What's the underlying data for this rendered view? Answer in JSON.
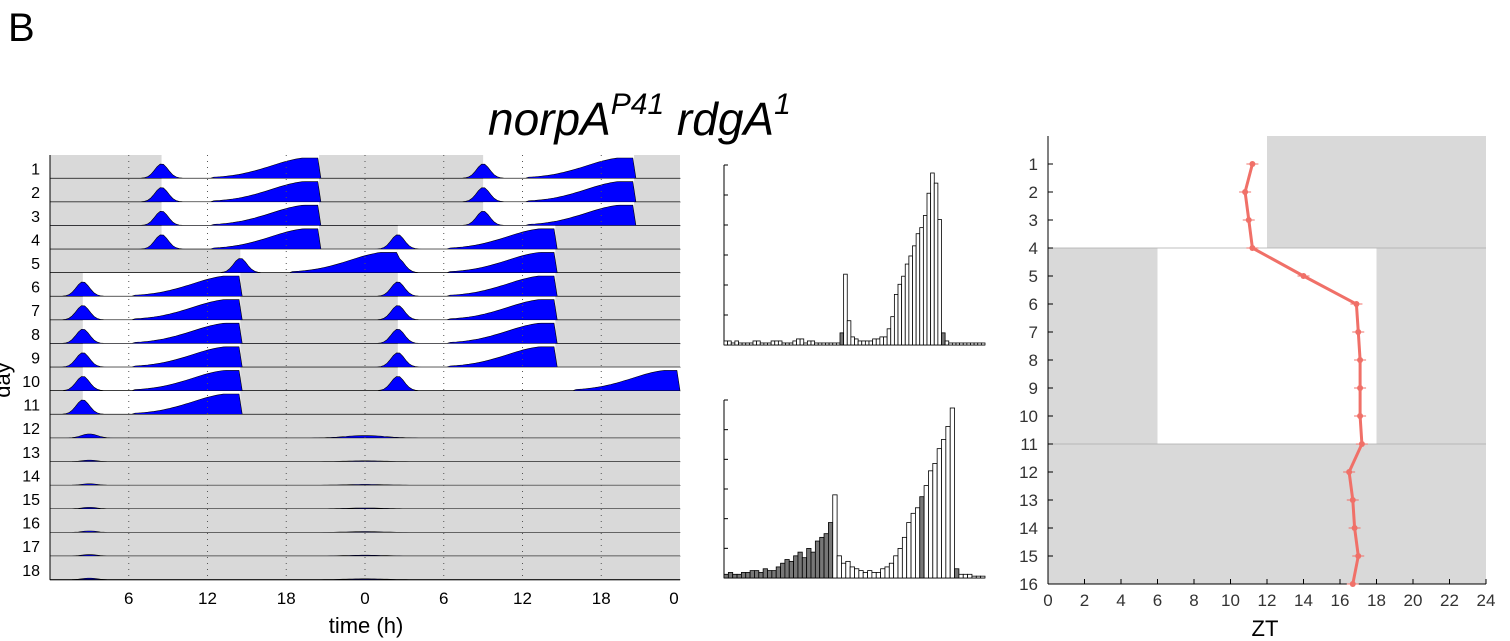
{
  "panel_label": "B",
  "title": {
    "gene1": "norpA",
    "sup1": "P41",
    "gene2": "rdgA",
    "sup2": "1"
  },
  "colors": {
    "activity": "#0000ff",
    "dark_shade": "#d9d9d9",
    "phase_line": "#f07068",
    "bar_light": "#ffffff",
    "bar_dark": "#777777"
  },
  "chart_data": [
    {
      "type": "area",
      "name": "actogram",
      "xlabel": "time (h)",
      "ylabel": "day",
      "x_tick_labels": [
        "6",
        "12",
        "18",
        "0",
        "6",
        "12",
        "18",
        "0"
      ],
      "days": [
        "1",
        "2",
        "3",
        "4",
        "5",
        "6",
        "7",
        "8",
        "9",
        "10",
        "11",
        "12",
        "13",
        "14",
        "15",
        "16",
        "17",
        "18"
      ],
      "light_windows_zt": [
        [
          [
            8.5,
            20.5
          ]
        ],
        [
          [
            8.5,
            20.5
          ]
        ],
        [
          [
            8.5,
            20.5
          ]
        ],
        [
          [
            8.5,
            20.5
          ]
        ],
        [
          [
            14.5,
            26.5
          ]
        ],
        [
          [
            2.5,
            14.5
          ]
        ],
        [
          [
            2.5,
            14.5
          ]
        ],
        [
          [
            2.5,
            14.5
          ]
        ],
        [
          [
            2.5,
            14.5
          ]
        ],
        [
          [
            2.5,
            14.5
          ]
        ],
        [
          [
            2.5,
            14.5
          ]
        ],
        [],
        [],
        [],
        [],
        [],
        [],
        []
      ],
      "light_windows_right_zt": [
        [
          [
            9,
            20.5
          ]
        ],
        [
          [
            9,
            20.5
          ]
        ],
        [
          [
            9,
            20.5
          ]
        ],
        [
          [
            2.5,
            14.5
          ]
        ],
        [
          [
            2.5,
            14.5
          ]
        ],
        [
          [
            2.5,
            14.5
          ]
        ],
        [
          [
            2.5,
            14.5
          ]
        ],
        [
          [
            2.5,
            14.5
          ]
        ],
        [
          [
            2.5,
            14.5
          ]
        ],
        [
          [
            2.5,
            24
          ]
        ],
        [],
        [],
        [],
        [],
        [],
        [],
        [],
        []
      ]
    },
    {
      "type": "bar",
      "name": "activity-profile-top",
      "values": [
        2,
        2,
        1,
        2,
        1,
        1,
        1,
        1,
        2,
        2,
        1,
        1,
        1,
        2,
        2,
        2,
        1,
        1,
        1,
        2,
        3,
        3,
        1,
        2,
        2,
        1,
        1,
        1,
        1,
        1,
        1,
        1,
        6,
        35,
        12,
        4,
        3,
        2,
        2,
        2,
        2,
        3,
        3,
        4,
        4,
        8,
        14,
        25,
        30,
        34,
        40,
        44,
        49,
        55,
        58,
        64,
        75,
        85,
        80,
        62,
        6,
        2,
        1,
        1,
        1,
        1,
        1,
        1,
        1,
        1,
        1,
        1
      ],
      "dark_bins": [
        32,
        60
      ]
    },
    {
      "type": "bar",
      "name": "activity-profile-bottom",
      "values": [
        2,
        3,
        2,
        2,
        3,
        3,
        4,
        4,
        3,
        5,
        4,
        4,
        6,
        8,
        10,
        9,
        12,
        14,
        11,
        16,
        14,
        20,
        22,
        24,
        30,
        45,
        12,
        8,
        9,
        6,
        5,
        4,
        3,
        4,
        3,
        3,
        5,
        6,
        8,
        12,
        16,
        22,
        30,
        35,
        38,
        44,
        50,
        58,
        62,
        70,
        75,
        82,
        92,
        5,
        2,
        2,
        2,
        1,
        1,
        1
      ],
      "dark_bins": [
        0,
        1,
        2,
        3,
        4,
        5,
        6,
        7,
        8,
        9,
        10,
        11,
        12,
        13,
        14,
        15,
        16,
        17,
        18,
        19,
        20,
        21,
        22,
        23,
        24,
        45,
        53
      ]
    },
    {
      "type": "line",
      "name": "phase-plot",
      "xlabel": "ZT",
      "ylabel": "",
      "x_ticks": [
        0,
        2,
        4,
        6,
        8,
        10,
        12,
        14,
        16,
        18,
        20,
        22,
        24
      ],
      "y_ticks": [
        1,
        2,
        3,
        4,
        5,
        6,
        7,
        8,
        9,
        10,
        11,
        12,
        13,
        14,
        15,
        16
      ],
      "xlim": [
        0,
        24
      ],
      "ylim": [
        0,
        16
      ],
      "y": [
        1,
        2,
        3,
        4,
        5,
        6,
        7,
        8,
        9,
        10,
        11,
        12,
        13,
        14,
        15,
        16
      ],
      "x": [
        11.2,
        10.8,
        11.0,
        11.2,
        14.0,
        16.9,
        17.0,
        17.1,
        17.1,
        17.1,
        17.2,
        16.5,
        16.7,
        16.8,
        17.0,
        16.7
      ],
      "shading": {
        "days_0_to_4_dark_zt": [
          12,
          24
        ],
        "days_4_to_11_dark_zt": [
          [
            0,
            6
          ],
          [
            18,
            24
          ]
        ],
        "days_11_to_16_dark_zt": [
          0,
          24
        ]
      }
    }
  ]
}
